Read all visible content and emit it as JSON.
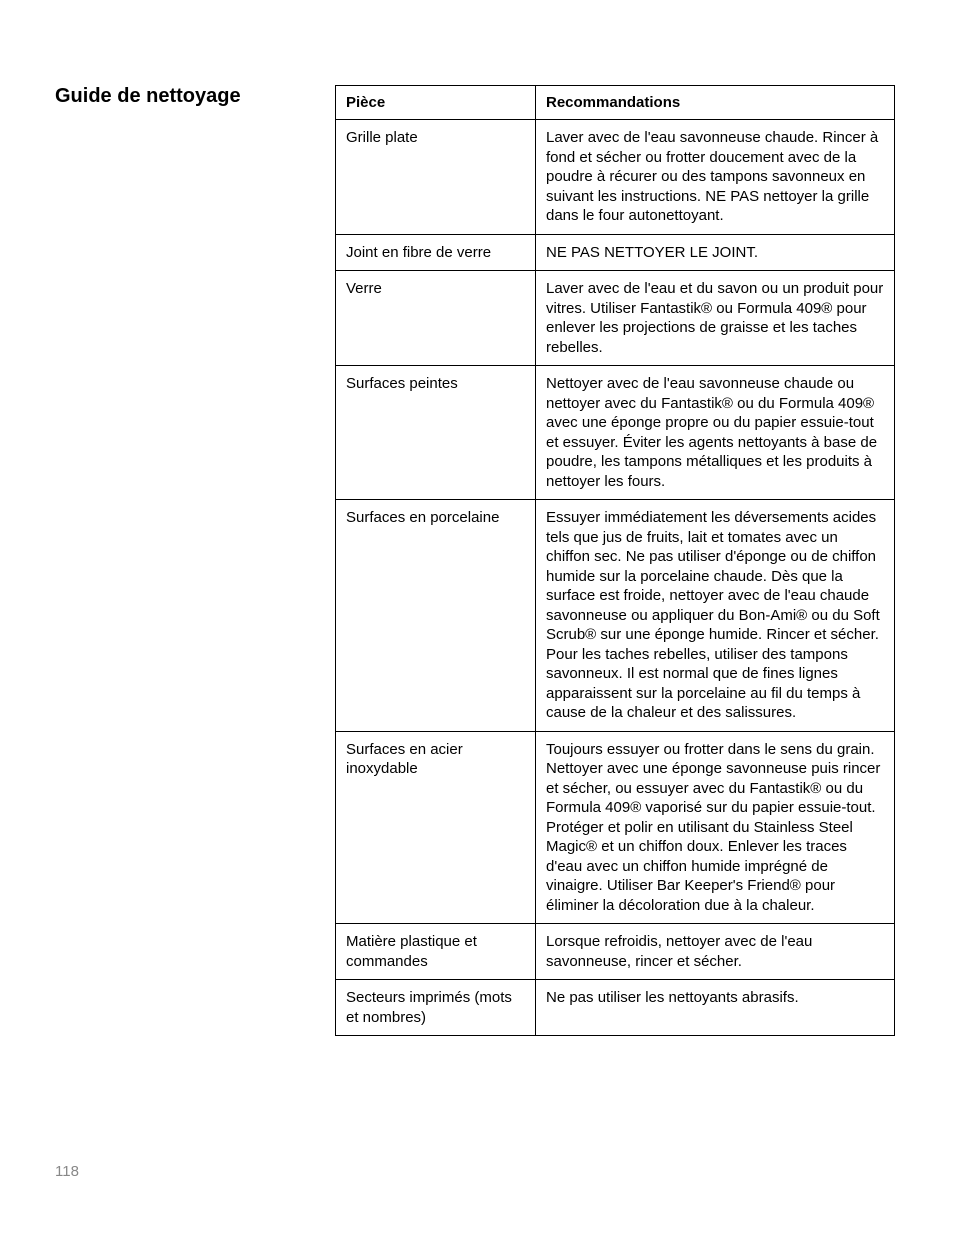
{
  "section_title": "Guide de nettoyage",
  "page_number": "118",
  "table": {
    "headers": {
      "col1": "Pièce",
      "col2": "Recommandations"
    },
    "rows": [
      {
        "piece": "Grille plate",
        "recommendation": "Laver avec de l'eau savonneuse chaude. Rincer à fond et sécher ou frotter doucement avec de la poudre à récurer ou des tampons savonneux en suivant les instructions. NE PAS nettoyer la grille dans le four autonettoyant."
      },
      {
        "piece": "Joint en fibre de verre",
        "recommendation": "NE PAS NETTOYER LE JOINT."
      },
      {
        "piece": "Verre",
        "recommendation": "Laver avec de l'eau et du savon ou un produit pour vitres. Utiliser Fantastik® ou Formula 409® pour enlever les projections de graisse et les taches rebelles."
      },
      {
        "piece": "Surfaces peintes",
        "recommendation": "Nettoyer avec de l'eau savonneuse chaude ou nettoyer avec du Fantastik® ou du Formula 409® avec une éponge propre ou du papier essuie-tout et essuyer. Éviter les agents nettoyants à base de poudre, les tampons métalliques et les produits à nettoyer les fours."
      },
      {
        "piece": "Surfaces en porcelaine",
        "recommendation": "Essuyer immédiatement les déversements acides tels que jus de fruits, lait et tomates avec un chiffon sec. Ne pas utiliser d'éponge ou de chiffon humide sur la porcelaine chaude. Dès que la surface est froide, nettoyer avec de l'eau chaude savonneuse ou appliquer du Bon-Ami® ou du Soft Scrub® sur une éponge humide. Rincer et sécher. Pour les taches rebelles, utiliser des tampons savonneux. Il est normal que de fines lignes apparaissent sur la porcelaine au fil du temps à cause de la chaleur et des salissures."
      },
      {
        "piece": "Surfaces en acier inoxydable",
        "recommendation": "Toujours essuyer ou frotter dans le sens du grain. Nettoyer avec une éponge savonneuse puis rincer et sécher, ou essuyer avec du Fantastik® ou du Formula 409® vaporisé sur du papier essuie-tout. Protéger et polir en utilisant du Stainless Steel Magic® et un chiffon doux. Enlever les traces d'eau avec un chiffon humide imprégné de vinaigre. Utiliser Bar Keeper's Friend® pour éliminer la décoloration due à la chaleur."
      },
      {
        "piece": "Matière plastique et commandes",
        "recommendation": "Lorsque refroidis, nettoyer avec de l'eau savonneuse, rincer et sécher."
      },
      {
        "piece": "Secteurs imprimés (mots et nombres)",
        "recommendation": "Ne pas utiliser les nettoyants abrasifs."
      }
    ]
  }
}
